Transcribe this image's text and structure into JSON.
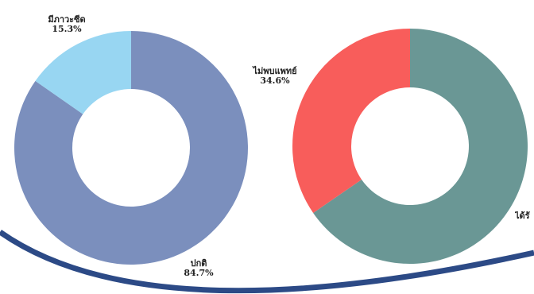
{
  "chart_data": [
    {
      "type": "pie",
      "donut": true,
      "categories": [
        "ปกติ",
        "มีภาวะซีด"
      ],
      "values": [
        84.7,
        15.3
      ],
      "value_labels": [
        "84.7%",
        "15.3%"
      ],
      "colors": [
        "#7b8fbd",
        "#98d6f2"
      ]
    },
    {
      "type": "pie",
      "donut": true,
      "categories": [
        "ได้รั",
        "ไม่พบแพทย์"
      ],
      "values": [
        65.4,
        34.6
      ],
      "value_labels": [
        "",
        "34.6%"
      ],
      "colors": [
        "#6a9795",
        "#f85d5b"
      ]
    }
  ],
  "decoration": {
    "arc_color": "#2c4a86"
  }
}
